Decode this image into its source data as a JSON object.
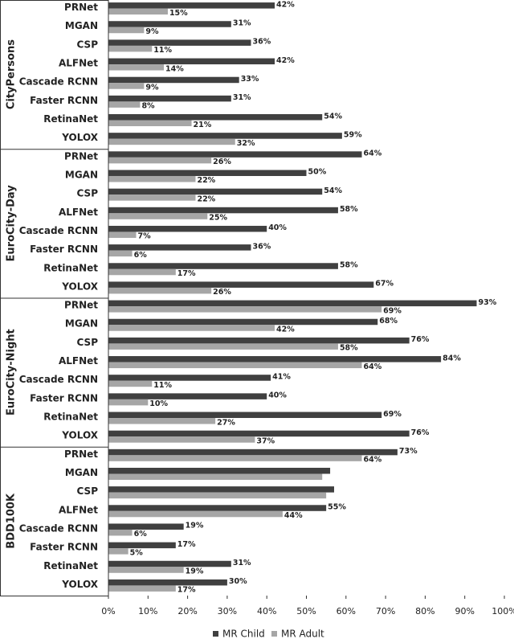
{
  "chart_data": {
    "type": "bar",
    "orientation": "horizontal",
    "series": [
      {
        "name": "MR Child",
        "color": "#404040"
      },
      {
        "name": "MR Adult",
        "color": "#a6a6a6"
      }
    ],
    "xlim": [
      0,
      100
    ],
    "xticks": [
      {
        "value": 0,
        "label": "0%"
      },
      {
        "value": 10,
        "label": "10%"
      },
      {
        "value": 20,
        "label": "20%"
      },
      {
        "value": 30,
        "label": "30%"
      },
      {
        "value": 40,
        "label": "40%"
      },
      {
        "value": 50,
        "label": "50%"
      },
      {
        "value": 60,
        "label": "60%"
      },
      {
        "value": 70,
        "label": "70%"
      },
      {
        "value": 80,
        "label": "80%"
      },
      {
        "value": 90,
        "label": "90%"
      },
      {
        "value": 100,
        "label": "100%"
      }
    ],
    "groups": [
      {
        "name": "CityPersons",
        "categories": [
          "PRNet",
          "MGAN",
          "CSP",
          "ALFNet",
          "Cascade RCNN",
          "Faster RCNN",
          "RetinaNet",
          "YOLOX"
        ],
        "series": [
          {
            "values": [
              42,
              31,
              36,
              42,
              33,
              31,
              54,
              59
            ],
            "value_labels": [
              "42%",
              "31%",
              "36%",
              "42%",
              "33%",
              "31%",
              "54%",
              "59%"
            ]
          },
          {
            "values": [
              15,
              9,
              11,
              14,
              9,
              8,
              21,
              32
            ],
            "value_labels": [
              "15%",
              "9%",
              "11%",
              "14%",
              "9%",
              "8%",
              "21%",
              "32%"
            ]
          }
        ]
      },
      {
        "name": "EuroCity-Day",
        "categories": [
          "PRNet",
          "MGAN",
          "CSP",
          "ALFNet",
          "Cascade RCNN",
          "Faster RCNN",
          "RetinaNet",
          "YOLOX"
        ],
        "series": [
          {
            "values": [
              64,
              50,
              54,
              58,
              40,
              36,
              58,
              67
            ],
            "value_labels": [
              "64%",
              "50%",
              "54%",
              "58%",
              "40%",
              "36%",
              "58%",
              "67%"
            ]
          },
          {
            "values": [
              26,
              22,
              22,
              25,
              7,
              6,
              17,
              26
            ],
            "value_labels": [
              "26%",
              "22%",
              "22%",
              "25%",
              "7%",
              "6%",
              "17%",
              "26%"
            ]
          }
        ]
      },
      {
        "name": "EuroCity-Night",
        "categories": [
          "PRNet",
          "MGAN",
          "CSP",
          "ALFNet",
          "Cascade RCNN",
          "Faster RCNN",
          "RetinaNet",
          "YOLOX"
        ],
        "series": [
          {
            "values": [
              93,
              68,
              76,
              84,
              41,
              40,
              69,
              76
            ],
            "value_labels": [
              "93%",
              "68%",
              "76%",
              "84%",
              "41%",
              "40%",
              "69%",
              "76%"
            ]
          },
          {
            "values": [
              69,
              42,
              58,
              64,
              11,
              10,
              27,
              37
            ],
            "value_labels": [
              "69%",
              "42%",
              "58%",
              "64%",
              "11%",
              "10%",
              "27%",
              "37%"
            ]
          }
        ]
      },
      {
        "name": "BDD100K",
        "categories": [
          "PRNet",
          "MGAN",
          "CSP",
          "ALFNet",
          "Cascade RCNN",
          "Faster RCNN",
          "RetinaNet",
          "YOLOX"
        ],
        "series": [
          {
            "values": [
              73,
              56,
              57,
              55,
              19,
              17,
              31,
              30
            ],
            "value_labels": [
              "73%",
              null,
              null,
              "55%",
              "19%",
              "17%",
              "31%",
              "30%"
            ]
          },
          {
            "values": [
              64,
              54,
              55,
              44,
              6,
              5,
              19,
              17
            ],
            "value_labels": [
              "64%",
              null,
              null,
              "44%",
              "6%",
              "5%",
              "19%",
              "17%"
            ]
          }
        ]
      }
    ]
  }
}
